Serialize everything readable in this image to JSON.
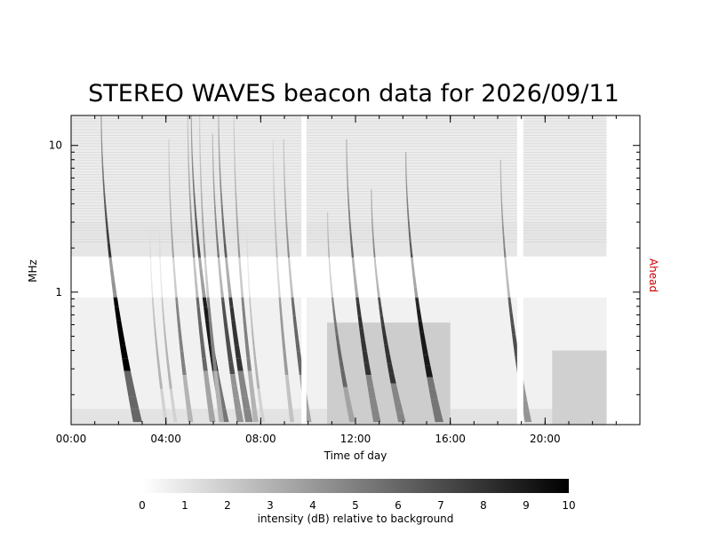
{
  "chart_data": {
    "type": "heatmap",
    "title": "STEREO WAVES beacon data for 2026/09/11",
    "xlabel": "Time of day",
    "ylabel": "MHz",
    "spacecraft_label": "Ahead",
    "spacecraft_color": "#cc0000",
    "x_ticks": [
      {
        "hour": 0,
        "label": "00:00"
      },
      {
        "hour": 4,
        "label": "04:00"
      },
      {
        "hour": 8,
        "label": "08:00"
      },
      {
        "hour": 12,
        "label": "12:00"
      },
      {
        "hour": 16,
        "label": "16:00"
      },
      {
        "hour": 20,
        "label": "20:00"
      }
    ],
    "x_minor_step_hours": 1,
    "xlim_hours": [
      0,
      24
    ],
    "y_ticks": [
      {
        "mhz": 1,
        "label": "1"
      },
      {
        "mhz": 10,
        "label": "10"
      }
    ],
    "y_scale": "log",
    "ylim_mhz": [
      0.125,
      16
    ],
    "data_end_hour": 22.6,
    "data_gaps_hours": [
      [
        9.72,
        9.93
      ],
      [
        18.82,
        19.08
      ]
    ],
    "bursts": [
      {
        "hour": 1.25,
        "top_mhz": 16,
        "intensity": 10
      },
      {
        "hour": 3.3,
        "top_mhz": 3,
        "intensity": 3
      },
      {
        "hour": 3.7,
        "top_mhz": 3,
        "intensity": 3
      },
      {
        "hour": 4.1,
        "top_mhz": 11,
        "intensity": 5
      },
      {
        "hour": 4.9,
        "top_mhz": 16,
        "intensity": 6
      },
      {
        "hour": 5.05,
        "top_mhz": 16,
        "intensity": 9
      },
      {
        "hour": 5.4,
        "top_mhz": 16,
        "intensity": 5
      },
      {
        "hour": 5.95,
        "top_mhz": 12,
        "intensity": 7
      },
      {
        "hour": 6.2,
        "top_mhz": 16,
        "intensity": 8
      },
      {
        "hour": 6.85,
        "top_mhz": 16,
        "intensity": 5
      },
      {
        "hour": 7.4,
        "top_mhz": 3,
        "intensity": 3
      },
      {
        "hour": 8.5,
        "top_mhz": 11,
        "intensity": 4
      },
      {
        "hour": 8.95,
        "top_mhz": 11,
        "intensity": 6
      },
      {
        "hour": 10.8,
        "top_mhz": 3.5,
        "intensity": 6
      },
      {
        "hour": 11.6,
        "top_mhz": 11,
        "intensity": 8
      },
      {
        "hour": 12.65,
        "top_mhz": 5,
        "intensity": 8
      },
      {
        "hour": 14.1,
        "top_mhz": 9,
        "intensity": 9
      },
      {
        "hour": 18.1,
        "top_mhz": 8,
        "intensity": 7
      }
    ],
    "colorbar": {
      "min": 0,
      "max": 10,
      "ticks": [
        0,
        1,
        2,
        3,
        4,
        5,
        6,
        7,
        8,
        9,
        10
      ],
      "label": "intensity (dB) relative to background",
      "colormap": "white-to-black"
    }
  }
}
